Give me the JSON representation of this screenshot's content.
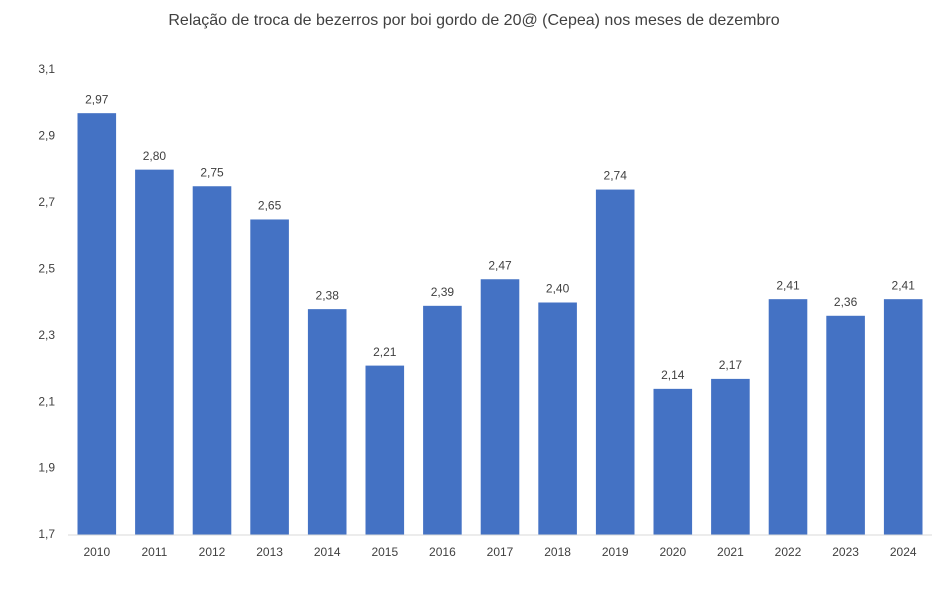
{
  "chart_data": {
    "type": "bar",
    "title": "Relação de troca de bezerros por boi gordo de 20@ (Cepea) nos meses de dezembro",
    "categories": [
      "2010",
      "2011",
      "2012",
      "2013",
      "2014",
      "2015",
      "2016",
      "2017",
      "2018",
      "2019",
      "2020",
      "2021",
      "2022",
      "2023",
      "2024"
    ],
    "values": [
      2.97,
      2.8,
      2.75,
      2.65,
      2.38,
      2.21,
      2.39,
      2.47,
      2.4,
      2.74,
      2.14,
      2.17,
      2.41,
      2.36,
      2.41
    ],
    "value_labels": [
      "2,97",
      "2,80",
      "2,75",
      "2,65",
      "2,38",
      "2,21",
      "2,39",
      "2,47",
      "2,40",
      "2,74",
      "2,14",
      "2,17",
      "2,41",
      "2,36",
      "2,41"
    ],
    "color": "#4472c4",
    "ylim": [
      1.7,
      3.1
    ],
    "yticks": [
      {
        "value": 1.7,
        "label": "1,7"
      },
      {
        "value": 1.9,
        "label": "1,9"
      },
      {
        "value": 2.1,
        "label": "2,1"
      },
      {
        "value": 2.3,
        "label": "2,3"
      },
      {
        "value": 2.5,
        "label": "2,5"
      },
      {
        "value": 2.7,
        "label": "2,7"
      },
      {
        "value": 2.9,
        "label": "2,9"
      },
      {
        "value": 3.1,
        "label": "3,1"
      }
    ],
    "grid": false
  }
}
